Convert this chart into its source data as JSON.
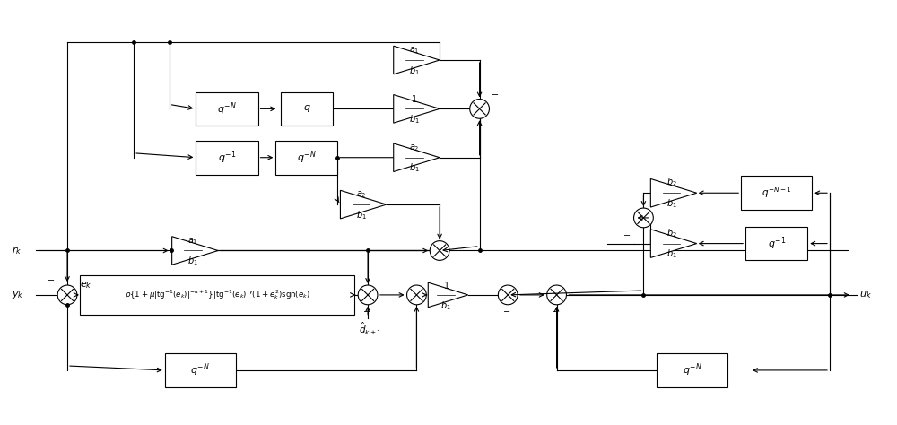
{
  "fig_width": 10.0,
  "fig_height": 4.74,
  "bg_color": "#ffffff",
  "line_color": "#000000",
  "line_width": 0.8
}
